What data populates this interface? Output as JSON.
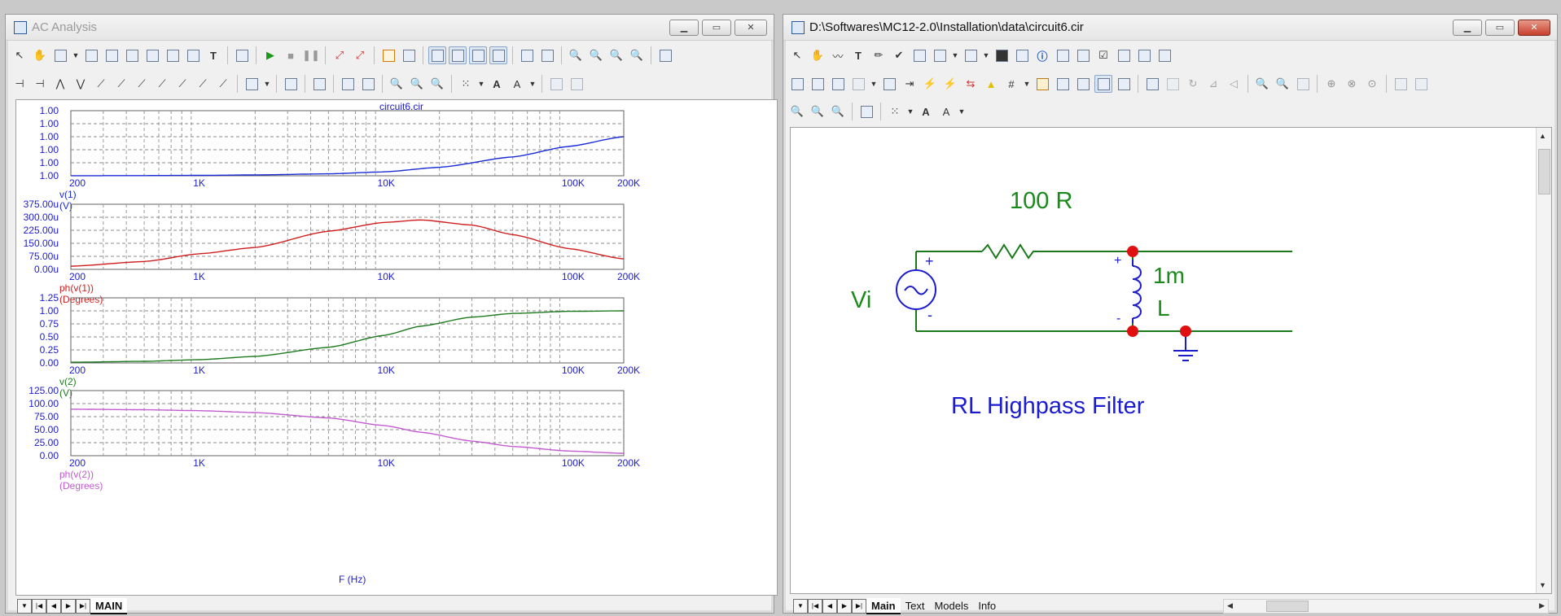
{
  "left_window": {
    "title": "AC Analysis",
    "tabs": [
      "MAIN"
    ],
    "plot_title": "circuit6.cir",
    "x_axis_label": "F (Hz)",
    "x_ticks": [
      "200",
      "1K",
      "10K",
      "100K",
      "200K"
    ]
  },
  "right_window": {
    "title": "D:\\Softwares\\MC12-2.0\\Installation\\data\\circuit6.cir",
    "tabs": [
      "Main",
      "Text",
      "Models",
      "Info"
    ],
    "schematic": {
      "resistor_label": "100 R",
      "inductor_value": "1m",
      "inductor_name": "L",
      "source_name": "Vi",
      "caption": "RL Highpass Filter",
      "plus": "+",
      "minus": "-"
    }
  },
  "chart_data": [
    {
      "type": "line",
      "title": "circuit6.cir",
      "x_scale": "log",
      "x": [
        200,
        500,
        1000,
        2000,
        5000,
        10000,
        20000,
        50000,
        100000,
        200000
      ],
      "xlim": [
        200,
        200000
      ],
      "series": [
        {
          "name": "v(1) (V)",
          "color": "#1a2bd6",
          "values": [
            0.001,
            0.003,
            0.006,
            0.013,
            0.03,
            0.06,
            0.13,
            0.29,
            0.45,
            0.6
          ]
        }
      ],
      "y_ticks": [
        "1.00",
        "1.00",
        "1.00",
        "1.00",
        "1.00",
        "1.00"
      ],
      "y_values_note": "",
      "ylim": [
        0,
        1
      ],
      "xlabel": "",
      "ylabel": "",
      "grid": true
    },
    {
      "type": "line",
      "x_scale": "log",
      "x": [
        200,
        500,
        1000,
        2000,
        5000,
        10000,
        15900,
        30000,
        50000,
        100000,
        200000
      ],
      "xlim": [
        200,
        200000
      ],
      "series": [
        {
          "name": "ph(v(1)) (Degrees)",
          "color": "#d01f1f",
          "values": [
            18,
            45,
            90,
            126,
            220,
            270,
            285,
            255,
            200,
            120,
            60
          ]
        }
      ],
      "y_ticks": [
        "375.00u",
        "300.00u",
        "225.00u",
        "150.00u",
        "75.00u",
        "0.00u"
      ],
      "ylim": [
        0,
        375
      ],
      "grid": true
    },
    {
      "type": "line",
      "x_scale": "log",
      "x": [
        200,
        500,
        1000,
        2000,
        5000,
        10000,
        15900,
        30000,
        50000,
        100000,
        200000
      ],
      "xlim": [
        200,
        200000
      ],
      "series": [
        {
          "name": "v(2) (V)",
          "color": "#1e7a1e",
          "values": [
            0.013,
            0.031,
            0.063,
            0.125,
            0.3,
            0.53,
            0.707,
            0.88,
            0.95,
            0.99,
            1.0
          ]
        }
      ],
      "y_ticks": [
        "1.25",
        "1.00",
        "0.75",
        "0.50",
        "0.25",
        "0.00"
      ],
      "ylim": [
        0,
        1.25
      ],
      "grid": true
    },
    {
      "type": "line",
      "x_scale": "log",
      "x": [
        200,
        500,
        1000,
        2000,
        5000,
        10000,
        15900,
        30000,
        50000,
        100000,
        200000
      ],
      "xlim": [
        200,
        200000
      ],
      "series": [
        {
          "name": "ph(v(2)) (Degrees)",
          "color": "#c35bd1",
          "values": [
            89.3,
            88.2,
            86.4,
            82.8,
            72.5,
            57.9,
            45.0,
            28.0,
            17.7,
            9.0,
            4.5
          ]
        }
      ],
      "y_ticks": [
        "125.00",
        "100.00",
        "75.00",
        "50.00",
        "25.00",
        "0.00"
      ],
      "ylim": [
        0,
        125
      ],
      "xlabel": "F (Hz)",
      "grid": true
    }
  ]
}
